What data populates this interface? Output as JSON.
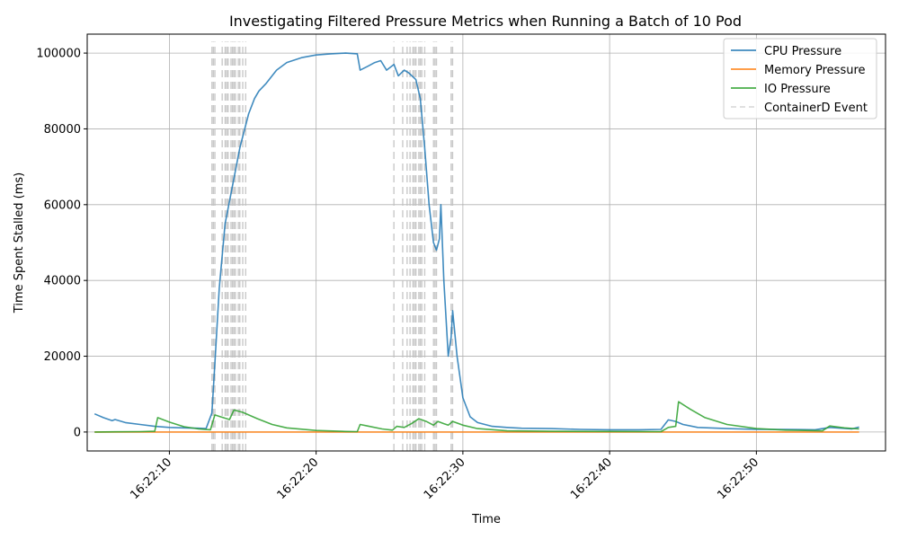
{
  "chart_data": {
    "type": "line",
    "title": "Investigating Filtered Pressure Metrics when Running a Batch of 10 Pod",
    "xlabel": "Time",
    "ylabel": "Time Spent Stalled (ms)",
    "x_unit": "time HH:MM:SS",
    "xlim": [
      "16:22:04.4",
      "16:22:58.8"
    ],
    "ylim": [
      -5000,
      105000
    ],
    "xticks": [
      "16:22:10",
      "16:22:20",
      "16:22:30",
      "16:22:40",
      "16:22:50"
    ],
    "yticks": [
      0,
      20000,
      40000,
      60000,
      80000,
      100000
    ],
    "grid": true,
    "legend_position": "top-right",
    "colors": {
      "cpu": "#1f77b4",
      "memory": "#ff7f0e",
      "io": "#2ca02c",
      "event": "#c0c0c0",
      "grid": "#b0b0b0"
    },
    "series": [
      {
        "name": "CPU Pressure",
        "color": "#1f77b4",
        "points": [
          [
            "16:22:04.9",
            4800
          ],
          [
            "16:22:05.5",
            3800
          ],
          [
            "16:22:06.1",
            3000
          ],
          [
            "16:22:06.3",
            3300
          ],
          [
            "16:22:07.0",
            2500
          ],
          [
            "16:22:08.0",
            2000
          ],
          [
            "16:22:09.0",
            1500
          ],
          [
            "16:22:10.0",
            1200
          ],
          [
            "16:22:11.0",
            1100
          ],
          [
            "16:22:12.0",
            1000
          ],
          [
            "16:22:12.5",
            900
          ],
          [
            "16:22:12.7",
            3000
          ],
          [
            "16:22:12.9",
            5000
          ],
          [
            "16:22:13.1",
            18000
          ],
          [
            "16:22:13.4",
            38000
          ],
          [
            "16:22:13.8",
            55000
          ],
          [
            "16:22:14.2",
            63000
          ],
          [
            "16:22:14.8",
            75000
          ],
          [
            "16:22:15.4",
            84000
          ],
          [
            "16:22:15.8",
            88000
          ],
          [
            "16:22:16.1",
            90000
          ],
          [
            "16:22:16.6",
            92000
          ],
          [
            "16:22:17.3",
            95500
          ],
          [
            "16:22:18.0",
            97500
          ],
          [
            "16:22:19.0",
            98800
          ],
          [
            "16:22:20.0",
            99500
          ],
          [
            "16:22:21.0",
            99800
          ],
          [
            "16:22:22.0",
            100000
          ],
          [
            "16:22:22.8",
            99800
          ],
          [
            "16:22:23.0",
            95500
          ],
          [
            "16:22:23.5",
            96500
          ],
          [
            "16:22:24.0",
            97500
          ],
          [
            "16:22:24.4",
            98000
          ],
          [
            "16:22:24.8",
            95500
          ],
          [
            "16:22:25.3",
            97000
          ],
          [
            "16:22:25.6",
            94000
          ],
          [
            "16:22:26.0",
            95500
          ],
          [
            "16:22:26.3",
            94800
          ],
          [
            "16:22:26.8",
            93000
          ],
          [
            "16:22:27.1",
            88000
          ],
          [
            "16:22:27.4",
            75000
          ],
          [
            "16:22:27.7",
            60000
          ],
          [
            "16:22:28.0",
            50000
          ],
          [
            "16:22:28.2",
            48000
          ],
          [
            "16:22:28.4",
            51000
          ],
          [
            "16:22:28.5",
            60000
          ],
          [
            "16:22:28.7",
            40000
          ],
          [
            "16:22:29.0",
            20000
          ],
          [
            "16:22:29.2",
            25000
          ],
          [
            "16:22:29.3",
            32000
          ],
          [
            "16:22:29.6",
            20000
          ],
          [
            "16:22:30.0",
            9000
          ],
          [
            "16:22:30.5",
            4000
          ],
          [
            "16:22:31.0",
            2500
          ],
          [
            "16:22:32.0",
            1500
          ],
          [
            "16:22:33.0",
            1200
          ],
          [
            "16:22:34.0",
            1000
          ],
          [
            "16:22:36.0",
            900
          ],
          [
            "16:22:38.0",
            700
          ],
          [
            "16:22:40.0",
            600
          ],
          [
            "16:22:42.0",
            600
          ],
          [
            "16:22:43.5",
            700
          ],
          [
            "16:22:44.0",
            3200
          ],
          [
            "16:22:44.5",
            2800
          ],
          [
            "16:22:45.0",
            2000
          ],
          [
            "16:22:46.0",
            1200
          ],
          [
            "16:22:48.0",
            900
          ],
          [
            "16:22:50.0",
            700
          ],
          [
            "16:22:52.0",
            700
          ],
          [
            "16:22:54.0",
            600
          ],
          [
            "16:22:55.0",
            1200
          ],
          [
            "16:22:56.5",
            800
          ],
          [
            "16:22:57.0",
            1300
          ]
        ]
      },
      {
        "name": "Memory Pressure",
        "color": "#ff7f0e",
        "points": [
          [
            "16:22:04.9",
            0
          ],
          [
            "16:22:57.0",
            0
          ]
        ]
      },
      {
        "name": "IO Pressure",
        "color": "#2ca02c",
        "points": [
          [
            "16:22:04.9",
            0
          ],
          [
            "16:22:08.0",
            100
          ],
          [
            "16:22:09.0",
            200
          ],
          [
            "16:22:09.2",
            3800
          ],
          [
            "16:22:10.0",
            2600
          ],
          [
            "16:22:11.0",
            1400
          ],
          [
            "16:22:12.0",
            800
          ],
          [
            "16:22:12.8",
            600
          ],
          [
            "16:22:13.1",
            4500
          ],
          [
            "16:22:13.5",
            4000
          ],
          [
            "16:22:14.1",
            3300
          ],
          [
            "16:22:14.4",
            5800
          ],
          [
            "16:22:15.0",
            5200
          ],
          [
            "16:22:16.0",
            3500
          ],
          [
            "16:22:17.0",
            2000
          ],
          [
            "16:22:18.0",
            1100
          ],
          [
            "16:22:20.0",
            400
          ],
          [
            "16:22:22.0",
            150
          ],
          [
            "16:22:22.8",
            100
          ],
          [
            "16:22:23.0",
            2000
          ],
          [
            "16:22:23.5",
            1600
          ],
          [
            "16:22:24.5",
            800
          ],
          [
            "16:22:25.2",
            500
          ],
          [
            "16:22:25.5",
            1500
          ],
          [
            "16:22:26.0",
            1200
          ],
          [
            "16:22:26.5",
            2200
          ],
          [
            "16:22:27.0",
            3500
          ],
          [
            "16:22:27.5",
            2800
          ],
          [
            "16:22:28.0",
            1800
          ],
          [
            "16:22:28.3",
            2800
          ],
          [
            "16:22:28.7",
            2200
          ],
          [
            "16:22:29.0",
            1800
          ],
          [
            "16:22:29.3",
            2800
          ],
          [
            "16:22:30.0",
            1800
          ],
          [
            "16:22:31.0",
            900
          ],
          [
            "16:22:33.0",
            300
          ],
          [
            "16:22:36.0",
            200
          ],
          [
            "16:22:40.0",
            150
          ],
          [
            "16:22:43.5",
            100
          ],
          [
            "16:22:44.0",
            1200
          ],
          [
            "16:22:44.5",
            1500
          ],
          [
            "16:22:44.7",
            8000
          ],
          [
            "16:22:45.5",
            6000
          ],
          [
            "16:22:46.5",
            3800
          ],
          [
            "16:22:48.0",
            2000
          ],
          [
            "16:22:50.0",
            900
          ],
          [
            "16:22:52.0",
            500
          ],
          [
            "16:22:54.5",
            300
          ],
          [
            "16:22:55.0",
            1600
          ],
          [
            "16:22:56.0",
            1100
          ],
          [
            "16:22:57.0",
            800
          ]
        ]
      }
    ],
    "event_series": {
      "name": "ContainerD Event",
      "color": "#c0c0c0",
      "y_range": [
        -5000,
        103000
      ],
      "times": [
        "16:22:12.9",
        "16:22:13.0",
        "16:22:13.1",
        "16:22:13.6",
        "16:22:13.8",
        "16:22:13.9",
        "16:22:14.0",
        "16:22:14.2",
        "16:22:14.3",
        "16:22:14.4",
        "16:22:14.5",
        "16:22:14.7",
        "16:22:14.8",
        "16:22:15.0",
        "16:22:15.2",
        "16:22:25.3",
        "16:22:25.9",
        "16:22:26.2",
        "16:22:26.4",
        "16:22:26.6",
        "16:22:26.7",
        "16:22:26.8",
        "16:22:27.0",
        "16:22:27.1",
        "16:22:27.2",
        "16:22:27.4",
        "16:22:28.0",
        "16:22:28.1",
        "16:22:28.2",
        "16:22:29.2",
        "16:22:29.3"
      ]
    }
  }
}
